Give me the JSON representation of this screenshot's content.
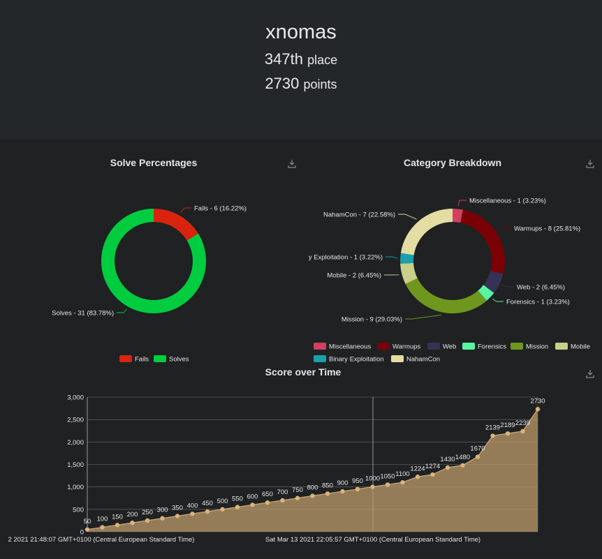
{
  "profile": {
    "name": "xnomas",
    "place_value": "347th",
    "place_label": "place",
    "points_value": "2730",
    "points_label": "points"
  },
  "chart_data": [
    {
      "type": "pie",
      "title": "Solve Percentages",
      "donut": true,
      "slices": [
        {
          "name": "Fails",
          "value": 6,
          "label": "Fails - 6 (16.22%)",
          "color": "#d9230f"
        },
        {
          "name": "Solves",
          "value": 31,
          "label": "Solves - 31 (83.78%)",
          "color": "#00cc3f"
        }
      ],
      "legend": [
        "Fails",
        "Solves"
      ],
      "legend_position": "bottom"
    },
    {
      "type": "pie",
      "title": "Category Breakdown",
      "donut": true,
      "slices": [
        {
          "name": "Miscellaneous",
          "value": 1,
          "label": "Miscellaneous - 1 (3.23%)",
          "color": "#d1405f"
        },
        {
          "name": "Warmups",
          "value": 8,
          "label": "Warmups - 8 (25.81%)",
          "color": "#7a0006"
        },
        {
          "name": "Web",
          "value": 2,
          "label": "Web - 2 (6.45%)",
          "color": "#363257"
        },
        {
          "name": "Forensics",
          "value": 1,
          "label": "Forensics - 1 (3.23%)",
          "color": "#57f5a1"
        },
        {
          "name": "Mission",
          "value": 9,
          "label": "Mission - 9 (29.03%)",
          "color": "#6f971d"
        },
        {
          "name": "Mobile",
          "value": 2,
          "label": "Mobile - 2 (6.45%)",
          "color": "#c8cf88"
        },
        {
          "name": "Binary Exploitation",
          "value": 1,
          "label": "y Exploitation - 1 (3.22%)",
          "color": "#1a9fac"
        },
        {
          "name": "NahamCon",
          "value": 7,
          "label": "NahamCon - 7 (22.58%)",
          "color": "#e3dda3"
        }
      ],
      "legend": [
        "Miscellaneous",
        "Warmups",
        "Web",
        "Forensics",
        "Mission",
        "Mobile",
        "Binary Exploitation",
        "NahamCon"
      ],
      "legend_position": "bottom"
    },
    {
      "type": "area",
      "title": "Score over Time",
      "color": "#c2a06e",
      "ylim": [
        0,
        3000
      ],
      "yticks": [
        "0",
        "500",
        "1,000",
        "1,500",
        "2,000",
        "2,500",
        "3,000"
      ],
      "ytick_values": [
        0,
        500,
        1000,
        1500,
        2000,
        2500,
        3000
      ],
      "xtick_labels": [
        "2 2021 21:48:07 GMT+0100 (Central European Standard Time)",
        "Sat Mar 13 2021 22:05:57 GMT+0100 (Central European Standard Time)"
      ],
      "values": [
        50,
        100,
        150,
        200,
        250,
        300,
        350,
        400,
        450,
        500,
        550,
        600,
        650,
        700,
        750,
        800,
        850,
        900,
        950,
        1000,
        1050,
        1100,
        1224,
        1274,
        1430,
        1480,
        1670,
        2139,
        2189,
        2239,
        2730
      ],
      "value_labels": [
        "50",
        "100",
        "150",
        "200",
        "250",
        "300",
        "350",
        "400",
        "450",
        "500",
        "550",
        "600",
        "650",
        "700",
        "750",
        "800",
        "850",
        "900",
        "950",
        "1000",
        "1050",
        "1100",
        "1224",
        "1274",
        "1430",
        "1480",
        "1670",
        "2139",
        "2189",
        "2239",
        "2730"
      ]
    }
  ]
}
